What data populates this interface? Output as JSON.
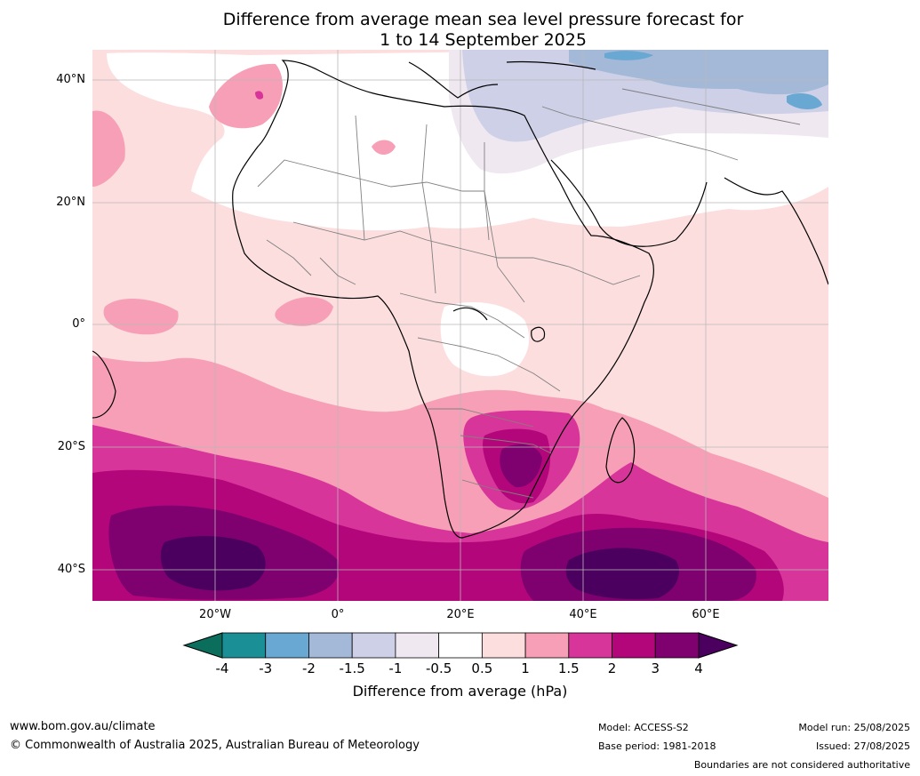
{
  "title": {
    "line1": "Difference from average mean sea level pressure forecast for",
    "line2": "1 to 14 September 2025"
  },
  "axes": {
    "lat_labels": [
      "40°N",
      "20°N",
      "0°",
      "20°S",
      "40°S"
    ],
    "lon_labels": [
      "20°W",
      "0°",
      "20°E",
      "40°E",
      "60°E"
    ]
  },
  "colorbar": {
    "ticks": [
      "-4",
      "-3",
      "-2",
      "-1.5",
      "-1",
      "-0.5",
      "0.5",
      "1",
      "1.5",
      "2",
      "3",
      "4"
    ],
    "colors": [
      "#1a8f96",
      "#68a8d2",
      "#a4b8d8",
      "#cdd0e6",
      "#f0e8f1",
      "#ffffff",
      "#fddede",
      "#f79fb6",
      "#d8359a",
      "#b3067a",
      "#7f0170"
    ],
    "under_color": "#0b6e5c",
    "over_color": "#4b0060",
    "label": "Difference from average (hPa)"
  },
  "footer": {
    "website": "www.bom.gov.au/climate",
    "copyright": "© Commonwealth of Australia 2025, Australian Bureau of Meteorology",
    "model": "Model: ACCESS-S2",
    "base_period": "Base period: 1981-2018",
    "model_run": "Model run: 25/08/2025",
    "issued": "Issued: 27/08/2025",
    "disclaimer": "Boundaries are not considered authoritative"
  }
}
